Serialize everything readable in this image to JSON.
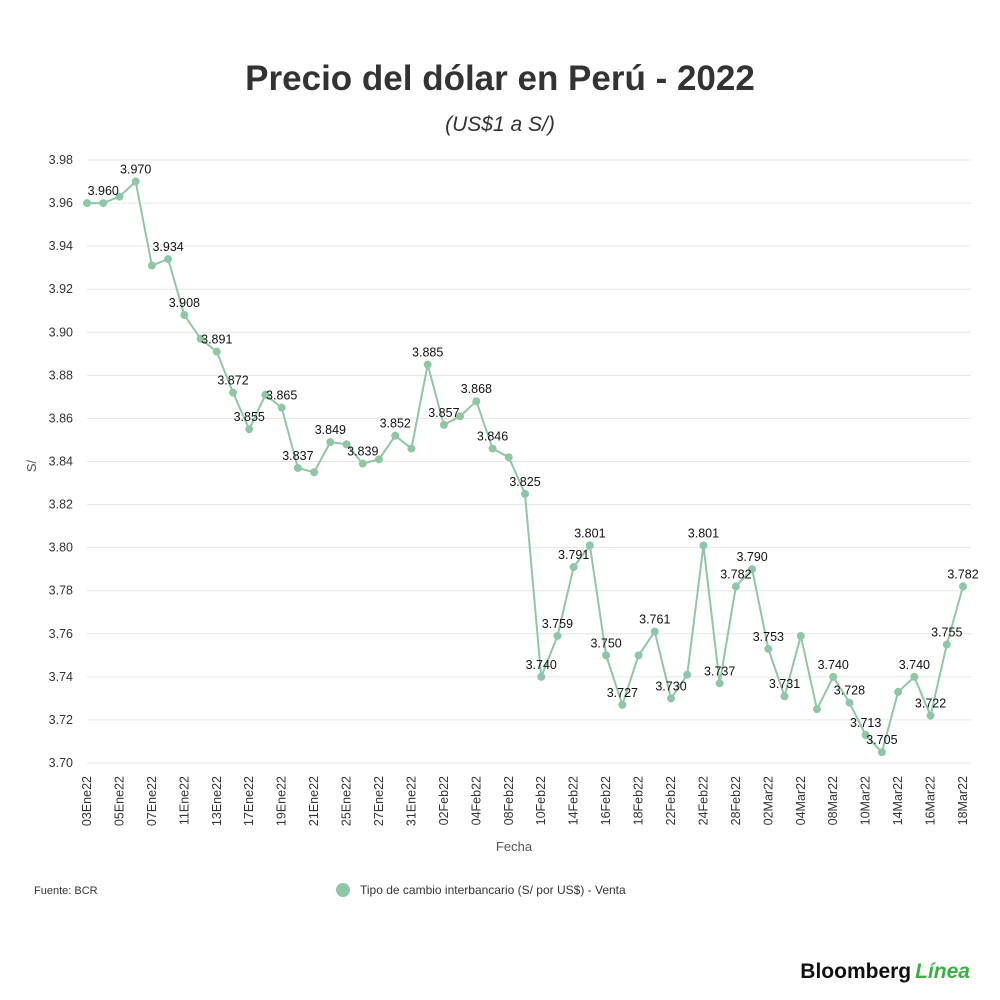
{
  "colors": {
    "series": "#8fc7a6",
    "grid": "#e6e6e6",
    "text": "#333333",
    "brand_accent": "#3cb043"
  },
  "chart_data": {
    "type": "line",
    "title": "Precio del dólar en Perú - 2022",
    "subtitle": "(US$1 a S/)",
    "xlabel": "Fecha",
    "ylabel": "S/",
    "ylim": [
      3.7,
      3.98
    ],
    "yticks": [
      "3.98",
      "3.96",
      "3.94",
      "3.92",
      "3.90",
      "3.88",
      "3.86",
      "3.84",
      "3.82",
      "3.80",
      "3.78",
      "3.76",
      "3.74",
      "3.72",
      "3.70"
    ],
    "xticks": [
      "03Ene22",
      "05Ene22",
      "07Ene22",
      "11Ene22",
      "13Ene22",
      "17Ene22",
      "19Ene22",
      "21Ene22",
      "25Ene22",
      "27Ene22",
      "31Ene22",
      "02Feb22",
      "04Feb22",
      "08Feb22",
      "10Feb22",
      "14Feb22",
      "16Feb22",
      "18Feb22",
      "22Feb22",
      "24Feb22",
      "28Feb22",
      "02Mar22",
      "04Mar22",
      "08Mar22",
      "10Mar22",
      "14Mar22",
      "16Mar22",
      "18Mar22"
    ],
    "grid": true,
    "legend_position": "bottom",
    "series": [
      {
        "name": "Tipo de cambio interbancario (S/ por US$) - Venta",
        "values": [
          3.96,
          3.96,
          3.963,
          3.97,
          3.931,
          3.934,
          3.908,
          3.897,
          3.891,
          3.872,
          3.855,
          3.871,
          3.865,
          3.837,
          3.835,
          3.849,
          3.848,
          3.839,
          3.841,
          3.852,
          3.846,
          3.885,
          3.857,
          3.861,
          3.868,
          3.846,
          3.842,
          3.825,
          3.74,
          3.759,
          3.791,
          3.801,
          3.75,
          3.727,
          3.75,
          3.761,
          3.73,
          3.741,
          3.801,
          3.737,
          3.782,
          3.79,
          3.753,
          3.731,
          3.759,
          3.725,
          3.74,
          3.728,
          3.713,
          3.705,
          3.733,
          3.74,
          3.722,
          3.755,
          3.782
        ],
        "data_labels": [
          {
            "i": 1,
            "text": "3.960"
          },
          {
            "i": 3,
            "text": "3.970"
          },
          {
            "i": 5,
            "text": "3.934"
          },
          {
            "i": 6,
            "text": "3.908"
          },
          {
            "i": 8,
            "text": "3.891"
          },
          {
            "i": 9,
            "text": "3.872"
          },
          {
            "i": 10,
            "text": "3.855"
          },
          {
            "i": 12,
            "text": "3.865"
          },
          {
            "i": 13,
            "text": "3.837"
          },
          {
            "i": 15,
            "text": "3.849"
          },
          {
            "i": 17,
            "text": "3.839"
          },
          {
            "i": 19,
            "text": "3.852"
          },
          {
            "i": 21,
            "text": "3.885"
          },
          {
            "i": 22,
            "text": "3.857"
          },
          {
            "i": 24,
            "text": "3.868"
          },
          {
            "i": 25,
            "text": "3.846"
          },
          {
            "i": 27,
            "text": "3.825"
          },
          {
            "i": 28,
            "text": "3.740"
          },
          {
            "i": 29,
            "text": "3.759"
          },
          {
            "i": 30,
            "text": "3.791"
          },
          {
            "i": 31,
            "text": "3.801"
          },
          {
            "i": 32,
            "text": "3.750"
          },
          {
            "i": 33,
            "text": "3.727"
          },
          {
            "i": 35,
            "text": "3.761"
          },
          {
            "i": 36,
            "text": "3.730"
          },
          {
            "i": 38,
            "text": "3.801"
          },
          {
            "i": 39,
            "text": "3.737"
          },
          {
            "i": 40,
            "text": "3.782"
          },
          {
            "i": 41,
            "text": "3.790"
          },
          {
            "i": 42,
            "text": "3.753"
          },
          {
            "i": 43,
            "text": "3.731"
          },
          {
            "i": 46,
            "text": "3.740"
          },
          {
            "i": 47,
            "text": "3.728"
          },
          {
            "i": 48,
            "text": "3.713"
          },
          {
            "i": 49,
            "text": "3.705"
          },
          {
            "i": 51,
            "text": "3.740"
          },
          {
            "i": 52,
            "text": "3.722"
          },
          {
            "i": 53,
            "text": "3.755"
          },
          {
            "i": 54,
            "text": "3.782"
          }
        ]
      }
    ]
  },
  "footer": {
    "source": "Fuente: BCR",
    "brand_main": "Bloomberg",
    "brand_accent": "Línea"
  }
}
